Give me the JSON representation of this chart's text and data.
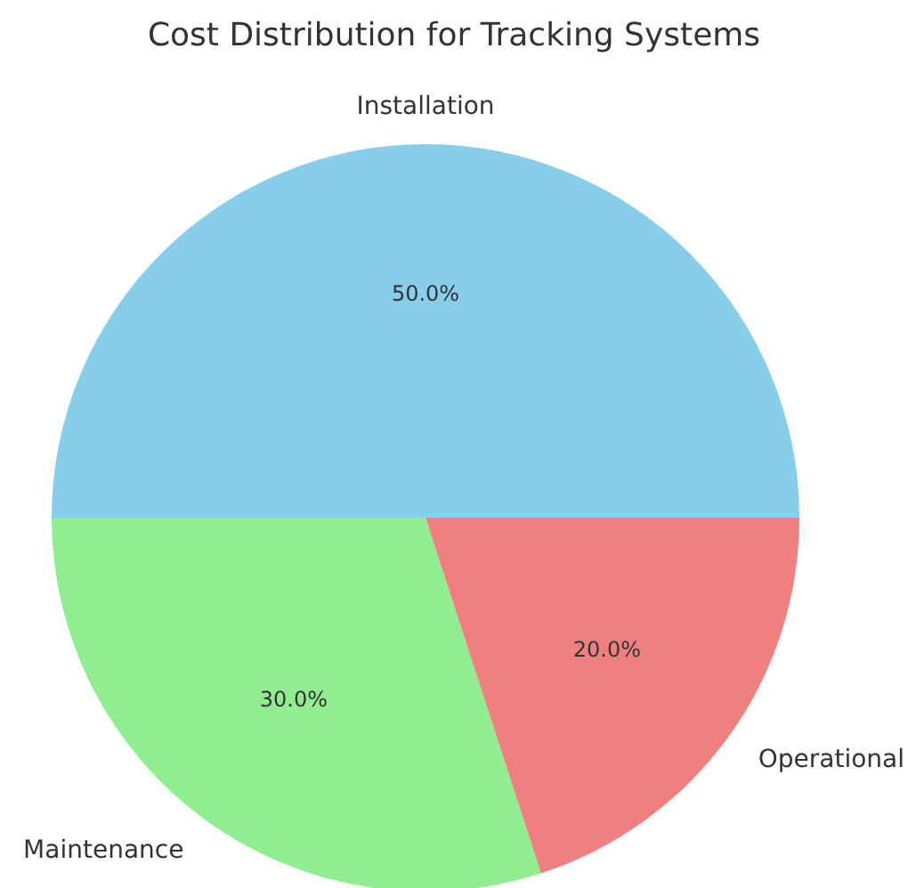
{
  "chart_data": {
    "type": "pie",
    "title": "Cost Distribution for Tracking Systems",
    "categories": [
      "Installation",
      "Maintenance",
      "Operational"
    ],
    "values": [
      50,
      30,
      20
    ],
    "colors": [
      "#87ceeb",
      "#90ee90",
      "#f08080"
    ],
    "value_labels": [
      "50.0%",
      "30.0%",
      "20.0%"
    ]
  }
}
